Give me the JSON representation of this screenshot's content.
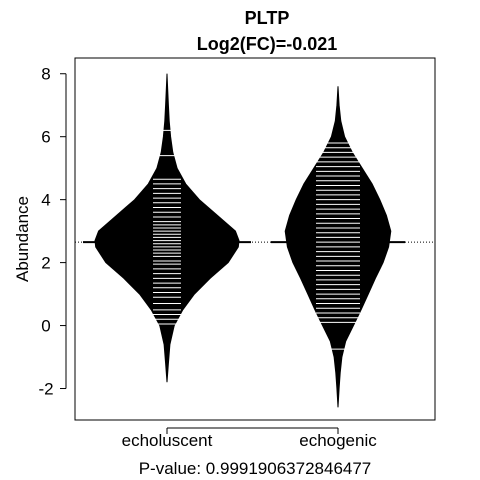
{
  "chart_data": {
    "type": "beanplot",
    "title": "PLTP",
    "subtitle": "Log2(FC)=-0.021",
    "ylabel": "Abundance",
    "xlabel": "P-value: 0.9991906372846477",
    "ylim": [
      -3,
      8.5
    ],
    "yticks": [
      -2,
      0,
      2,
      4,
      6,
      8
    ],
    "categories": [
      "echoluscent",
      "echogenic"
    ],
    "overall_median": 2.65,
    "groups": [
      {
        "name": "echoluscent",
        "mean": 2.65,
        "y_min": -1.8,
        "y_max": 8.0,
        "density": [
          [
            -1.8,
            0.0
          ],
          [
            -1.2,
            0.02
          ],
          [
            -0.6,
            0.04
          ],
          [
            0.0,
            0.1
          ],
          [
            0.5,
            0.22
          ],
          [
            1.0,
            0.38
          ],
          [
            1.5,
            0.6
          ],
          [
            2.0,
            0.85
          ],
          [
            2.5,
            0.99
          ],
          [
            2.7,
            1.0
          ],
          [
            3.0,
            0.95
          ],
          [
            3.5,
            0.7
          ],
          [
            4.0,
            0.45
          ],
          [
            4.5,
            0.26
          ],
          [
            5.0,
            0.14
          ],
          [
            5.5,
            0.08
          ],
          [
            6.0,
            0.05
          ],
          [
            6.5,
            0.03
          ],
          [
            7.0,
            0.02
          ],
          [
            7.5,
            0.01
          ],
          [
            8.0,
            0.0
          ]
        ],
        "observations": [
          0.05,
          0.2,
          0.35,
          0.5,
          0.7,
          0.9,
          1.05,
          1.2,
          1.35,
          1.5,
          1.65,
          1.8,
          1.95,
          2.05,
          2.2,
          2.3,
          2.4,
          2.5,
          2.6,
          2.7,
          2.8,
          2.9,
          3.0,
          3.1,
          3.2,
          3.3,
          3.45,
          3.6,
          3.75,
          3.9,
          4.05,
          4.2,
          4.35,
          4.5,
          4.65,
          5.4,
          6.2
        ]
      },
      {
        "name": "echogenic",
        "mean": 2.65,
        "y_min": -2.6,
        "y_max": 7.6,
        "density": [
          [
            -2.6,
            0.0
          ],
          [
            -2.0,
            0.02
          ],
          [
            -1.5,
            0.04
          ],
          [
            -1.0,
            0.07
          ],
          [
            -0.5,
            0.14
          ],
          [
            0.0,
            0.28
          ],
          [
            0.5,
            0.42
          ],
          [
            1.0,
            0.55
          ],
          [
            1.5,
            0.68
          ],
          [
            2.0,
            0.82
          ],
          [
            2.5,
            0.92
          ],
          [
            3.0,
            0.96
          ],
          [
            3.5,
            0.88
          ],
          [
            4.0,
            0.76
          ],
          [
            4.5,
            0.62
          ],
          [
            5.0,
            0.44
          ],
          [
            5.5,
            0.26
          ],
          [
            6.0,
            0.12
          ],
          [
            6.5,
            0.05
          ],
          [
            7.0,
            0.02
          ],
          [
            7.6,
            0.0
          ]
        ],
        "observations": [
          -0.75,
          0.1,
          0.25,
          0.4,
          0.55,
          0.7,
          0.85,
          1.0,
          1.15,
          1.3,
          1.45,
          1.6,
          1.75,
          1.9,
          2.05,
          2.2,
          2.35,
          2.5,
          2.65,
          2.8,
          2.95,
          3.1,
          3.25,
          3.4,
          3.55,
          3.7,
          3.85,
          4.0,
          4.15,
          4.3,
          4.45,
          4.6,
          4.75,
          4.9,
          5.05,
          5.2,
          5.35,
          5.5,
          5.65,
          5.8
        ]
      }
    ]
  }
}
